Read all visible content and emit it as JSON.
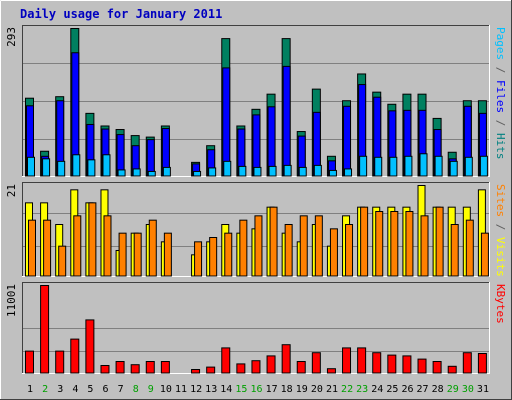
{
  "chart_data": {
    "type": "bar",
    "title": "Daily usage for January 2011",
    "days": [
      "1",
      "2",
      "3",
      "4",
      "5",
      "6",
      "7",
      "8",
      "9",
      "10",
      "11",
      "12",
      "13",
      "14",
      "15",
      "16",
      "17",
      "18",
      "19",
      "20",
      "21",
      "22",
      "23",
      "24",
      "25",
      "26",
      "27",
      "28",
      "29",
      "30",
      "31"
    ],
    "weekend_days": [
      "2",
      "8",
      "9",
      "15",
      "16",
      "22",
      "23",
      "29",
      "30"
    ],
    "panels": [
      {
        "name": "pages-files-hits",
        "max_label": "293",
        "ymax": 293,
        "legend": [
          {
            "text": "Pages",
            "color": "#00c0ff"
          },
          {
            "text": " / ",
            "color": "#606060"
          },
          {
            "text": "Files",
            "color": "#0000ff"
          },
          {
            "text": " / ",
            "color": "#606060"
          },
          {
            "text": "Hits",
            "color": "#008080"
          }
        ],
        "series": [
          {
            "name": "Hits",
            "color": "#008060",
            "values": [
              155,
              50,
              158,
              293,
              125,
              100,
              93,
              81,
              78,
              100,
              0,
              28,
              61,
              273,
              100,
              133,
              163,
              273,
              89,
              173,
              40,
              150,
              203,
              167,
              143,
              163,
              163,
              115,
              48,
              150,
              150
            ]
          },
          {
            "name": "Files",
            "color": "#0000ff",
            "values": [
              140,
              40,
              150,
              245,
              103,
              94,
              83,
              61,
              73,
              95,
              0,
              25,
              53,
              215,
              94,
              122,
              138,
              218,
              80,
              127,
              31,
              139,
              182,
              157,
              130,
              131,
              131,
              93,
              35,
              139,
              125
            ]
          },
          {
            "name": "Pages",
            "color": "#00c0ff",
            "values": [
              38,
              35,
              30,
              43,
              33,
              43,
              13,
              15,
              10,
              18,
              0,
              10,
              17,
              30,
              20,
              18,
              20,
              22,
              18,
              22,
              12,
              15,
              40,
              38,
              38,
              40,
              45,
              40,
              30,
              38,
              40
            ]
          }
        ]
      },
      {
        "name": "sites-visits",
        "max_label": "21",
        "ymax": 21,
        "legend": [
          {
            "text": "Sites",
            "color": "#ff8000"
          },
          {
            "text": " / ",
            "color": "#606060"
          },
          {
            "text": "Visits",
            "color": "#ffff00"
          }
        ],
        "series": [
          {
            "name": "Visits",
            "color": "#ffff00",
            "values": [
              17,
              17,
              12,
              20,
              17,
              20,
              6,
              10,
              12,
              8,
              0,
              5,
              8,
              12,
              10,
              11,
              16,
              10,
              8,
              12,
              7,
              14,
              16,
              16,
              16,
              16,
              21,
              16,
              16,
              16,
              20
            ]
          },
          {
            "name": "Sites",
            "color": "#ff8000",
            "values": [
              13,
              13,
              7,
              14,
              17,
              14,
              10,
              10,
              13,
              10,
              0,
              8,
              9,
              10,
              13,
              14,
              16,
              12,
              14,
              14,
              11,
              12,
              16,
              15,
              15,
              15,
              14,
              16,
              12,
              13,
              10
            ]
          }
        ]
      },
      {
        "name": "kbytes",
        "max_label": "11001",
        "ymax": 11001,
        "legend": [
          {
            "text": "KBytes",
            "color": "#ff0000"
          }
        ],
        "series": [
          {
            "name": "KBytes",
            "color": "#ff0000",
            "values": [
              2800,
              11001,
              2800,
              4300,
              6700,
              1000,
              1500,
              1100,
              1500,
              1500,
              0,
              500,
              800,
              3200,
              1200,
              1600,
              2200,
              3600,
              1500,
              2600,
              600,
              3200,
              3200,
              2600,
              2300,
              2200,
              1800,
              1500,
              900,
              2600,
              2500
            ]
          }
        ]
      }
    ]
  }
}
